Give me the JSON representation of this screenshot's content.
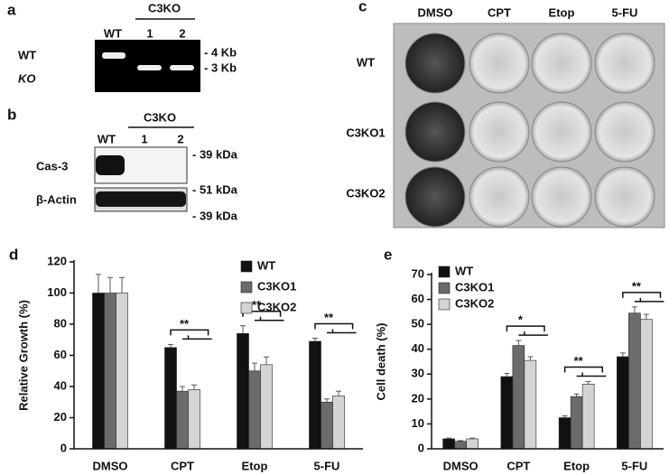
{
  "panel_a": {
    "label": "a",
    "group": "C3KO",
    "lanes": [
      "WT",
      "1",
      "2"
    ],
    "rows": [
      "WT",
      "KO"
    ],
    "markers": [
      "- 4 Kb",
      "- 3 Kb"
    ]
  },
  "panel_b": {
    "label": "b",
    "group": "C3KO",
    "lanes": [
      "WT",
      "1",
      "2"
    ],
    "rows": [
      "Cas-3",
      "β-Actin"
    ],
    "markers": [
      "- 39 kDa",
      "- 51 kDa",
      "- 39 kDa"
    ]
  },
  "panel_c": {
    "label": "c",
    "columns": [
      "DMSO",
      "CPT",
      "Etop",
      "5-FU"
    ],
    "rows": [
      "WT",
      "C3KO1",
      "C3KO2"
    ]
  },
  "chart_data": [
    {
      "type": "bar",
      "panel_label": "d",
      "ylabel": "Relative Growth (%)",
      "categories": [
        "DMSO",
        "CPT",
        "Etop",
        "5-FU"
      ],
      "series": [
        {
          "name": "WT",
          "color": "#111111",
          "values": [
            100,
            65,
            74,
            69
          ],
          "errors": [
            12,
            2,
            5,
            2
          ]
        },
        {
          "name": "C3KO1",
          "color": "#6b6b6b",
          "values": [
            100,
            37,
            50,
            30
          ],
          "errors": [
            10,
            3,
            5,
            2
          ]
        },
        {
          "name": "C3KO2",
          "color": "#d4d4d4",
          "values": [
            100,
            38,
            54,
            34
          ],
          "errors": [
            10,
            3,
            5,
            3
          ]
        }
      ],
      "ylim": [
        0,
        120
      ],
      "yticks": [
        0,
        20,
        40,
        60,
        80,
        100,
        120
      ],
      "legend": "upper right",
      "annotations": [
        "**",
        "**",
        "**"
      ]
    },
    {
      "type": "bar",
      "panel_label": "e",
      "ylabel": "Cell death (%)",
      "categories": [
        "DMSO",
        "CPT",
        "Etop",
        "5-FU"
      ],
      "series": [
        {
          "name": "WT",
          "color": "#111111",
          "values": [
            4,
            29,
            12.5,
            37
          ],
          "errors": [
            0.3,
            1.3,
            0.7,
            1.5
          ]
        },
        {
          "name": "C3KO1",
          "color": "#6b6b6b",
          "values": [
            3,
            41.5,
            21,
            54.5
          ],
          "errors": [
            0.3,
            2,
            1,
            2.5
          ]
        },
        {
          "name": "C3KO2",
          "color": "#d4d4d4",
          "values": [
            4,
            35.5,
            26,
            52
          ],
          "errors": [
            0.3,
            1.5,
            1,
            2
          ]
        }
      ],
      "ylim": [
        0,
        70
      ],
      "yticks": [
        0,
        10,
        20,
        30,
        40,
        50,
        60,
        70
      ],
      "legend": "upper left",
      "annotations": [
        "*",
        "**",
        "**"
      ]
    }
  ]
}
